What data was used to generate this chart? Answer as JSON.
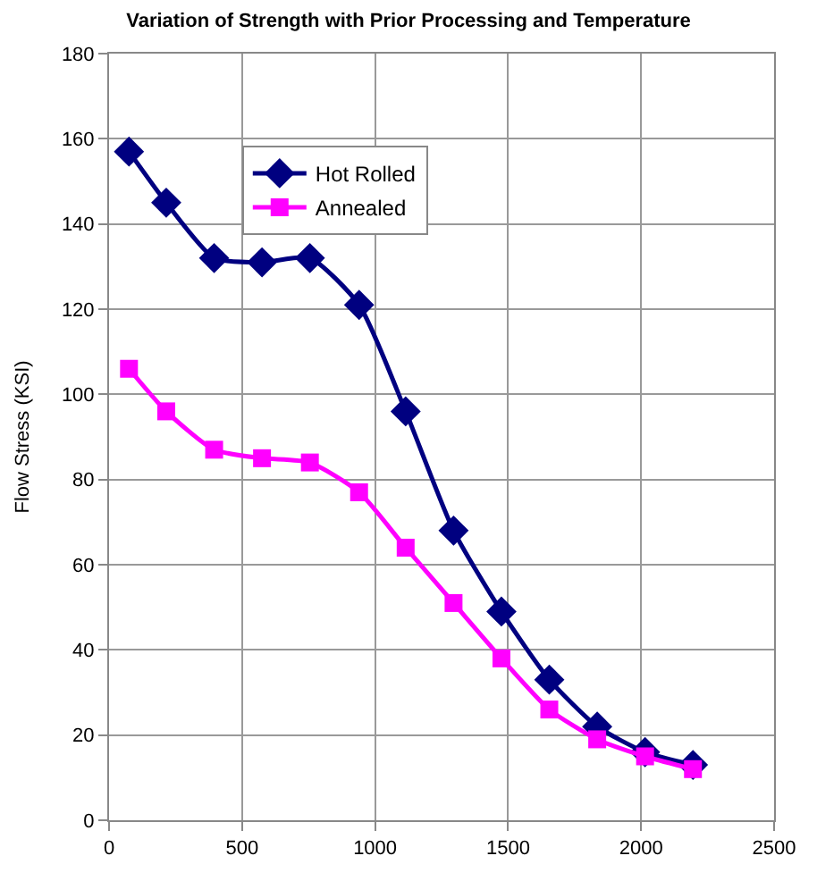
{
  "chart_data": {
    "type": "line",
    "title": "Variation of Strength with Prior Processing and Temperature",
    "ylabel": "Flow Stress (KSI)",
    "x": [
      75,
      215,
      395,
      575,
      755,
      940,
      1115,
      1295,
      1475,
      1655,
      1835,
      2015,
      2195
    ],
    "series": [
      {
        "name": "Hot Rolled",
        "color": "#000080",
        "marker": "diamond",
        "values": [
          157,
          145,
          132,
          131,
          132,
          121,
          96,
          68,
          49,
          33,
          22,
          16,
          13
        ]
      },
      {
        "name": "Annealed",
        "color": "#ff00ff",
        "marker": "square",
        "values": [
          106,
          96,
          87,
          85,
          84,
          77,
          64,
          51,
          38,
          26,
          19,
          15,
          12
        ]
      }
    ],
    "xlim": [
      0,
      2500
    ],
    "xticks": [
      0,
      500,
      1000,
      1500,
      2000,
      2500
    ],
    "ylim": [
      0,
      180
    ],
    "yticks": [
      0,
      20,
      40,
      60,
      80,
      100,
      120,
      140,
      160,
      180
    ],
    "grid": true,
    "legend": "top left",
    "line_style": "solid"
  }
}
